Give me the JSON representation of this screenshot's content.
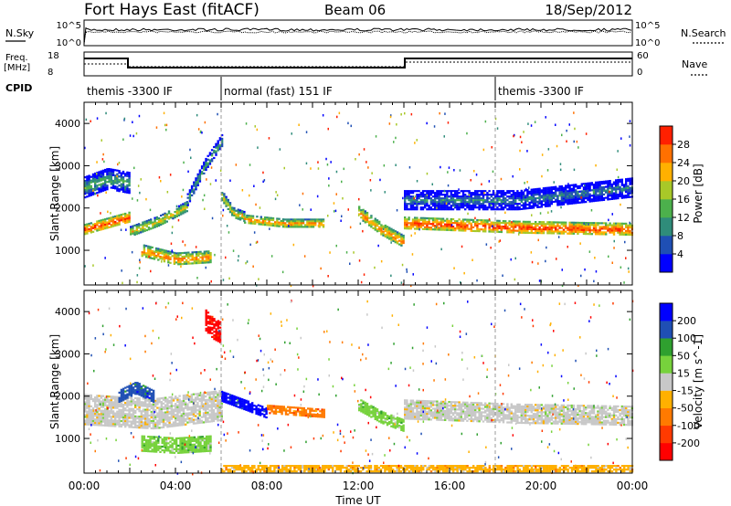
{
  "header": {
    "station": "Fort Hays East (fitACF)",
    "beam": "Beam 06",
    "date": "18/Sep/2012"
  },
  "top_panels": {
    "nsky_label": "N.Sky",
    "nsky_ticks": [
      "10^5",
      "10^0"
    ],
    "nsearch_label": "N.Search",
    "nsearch_ticks": [
      "10^5",
      "10^0"
    ],
    "freq_label_1": "Freq.",
    "freq_label_2": "[MHz]",
    "freq_ticks": [
      "18",
      "8"
    ],
    "nave_label": "Nave",
    "nave_ticks": [
      "60",
      "0"
    ],
    "cpid_label": "CPID",
    "cpid_segments": [
      {
        "label": "themis -3300 IF",
        "start_h": 0,
        "end_h": 6
      },
      {
        "label": "normal (fast) 151 IF",
        "start_h": 6,
        "end_h": 18
      },
      {
        "label": "themis -3300 IF",
        "start_h": 18,
        "end_h": 24
      }
    ]
  },
  "chart_data": [
    {
      "type": "heatmap",
      "name": "power",
      "ylabel": "Slant Range [km]",
      "xlim_hours": [
        0,
        24
      ],
      "ylim_km": [
        180,
        4500
      ],
      "y_ticks": [
        "1000",
        "2000",
        "3000",
        "4000"
      ],
      "colorbar_label": "Power [dB]",
      "colorbar_ticks": [
        "4",
        "8",
        "12",
        "16",
        "20",
        "24",
        "28"
      ],
      "colorbar_colors": [
        "#0000ff",
        "#1f4fb4",
        "#2f8c7a",
        "#4cb04c",
        "#a8c828",
        "#ffb000",
        "#ff7000",
        "#ff2000"
      ],
      "bands": [
        {
          "start_h": 0.0,
          "end_h": 2.0,
          "center_km": [
            1500,
            1650,
            1800
          ],
          "width_km": 250,
          "level": 7
        },
        {
          "start_h": 0.0,
          "end_h": 2.0,
          "center_km": [
            2500,
            2700,
            2600
          ],
          "width_km": 500,
          "level": 3
        },
        {
          "start_h": 2.0,
          "end_h": 4.5,
          "center_km": [
            1450,
            1700,
            2050
          ],
          "width_km": 250,
          "level": 5
        },
        {
          "start_h": 2.5,
          "end_h": 5.5,
          "center_km": [
            1000,
            800,
            850
          ],
          "width_km": 300,
          "level": 6
        },
        {
          "start_h": 4.5,
          "end_h": 6.0,
          "center_km": [
            2200,
            3000,
            3600
          ],
          "width_km": 300,
          "level": 3
        },
        {
          "start_h": 6.0,
          "end_h": 7.0,
          "center_km": [
            2300,
            1900,
            1800
          ],
          "width_km": 250,
          "level": 5
        },
        {
          "start_h": 7.0,
          "end_h": 10.5,
          "center_km": [
            1750,
            1650,
            1650
          ],
          "width_km": 200,
          "level": 6
        },
        {
          "start_h": 12.0,
          "end_h": 14.0,
          "center_km": [
            1900,
            1500,
            1200
          ],
          "width_km": 300,
          "level": 6
        },
        {
          "start_h": 14.0,
          "end_h": 24.0,
          "center_km": [
            1650,
            1550,
            1500
          ],
          "width_km": 300,
          "level": 7
        },
        {
          "start_h": 14.0,
          "end_h": 24.0,
          "center_km": [
            2200,
            2200,
            2500
          ],
          "width_km": 450,
          "level": 2
        }
      ]
    },
    {
      "type": "heatmap",
      "name": "velocity",
      "ylabel": "Slant Range [km]",
      "xlabel": "Time UT",
      "xlim_hours": [
        0,
        24
      ],
      "ylim_km": [
        180,
        4500
      ],
      "x_ticks": [
        "00:00",
        "04:00",
        "08:00",
        "12:00",
        "16:00",
        "20:00",
        "00:00"
      ],
      "y_ticks": [
        "1000",
        "2000",
        "3000",
        "4000"
      ],
      "colorbar_label": "Velocity [m s^-1]",
      "colorbar_ticks": [
        "200",
        "100",
        "50",
        "15",
        "-15",
        "-50",
        "-100",
        "-200"
      ],
      "colorbar_colors": [
        "#0000ff",
        "#1f4fb4",
        "#2fa02f",
        "#77d23c",
        "#c8c8c8",
        "#ffb000",
        "#ff7a00",
        "#ff3a00",
        "#ff0000"
      ],
      "bands": [
        {
          "start_h": 0.0,
          "end_h": 6.0,
          "center_km": [
            1700,
            1600,
            1800
          ],
          "width_km": 700,
          "level": 4
        },
        {
          "start_h": 1.5,
          "end_h": 3.0,
          "center_km": [
            2000,
            2200,
            2000
          ],
          "width_km": 300,
          "level": 1
        },
        {
          "start_h": 2.5,
          "end_h": 5.5,
          "center_km": [
            900,
            850,
            900
          ],
          "width_km": 350,
          "level": 3
        },
        {
          "start_h": 5.3,
          "end_h": 6.0,
          "center_km": [
            3800,
            3600,
            3500
          ],
          "width_km": 500,
          "level": 8
        },
        {
          "start_h": 6.0,
          "end_h": 8.0,
          "center_km": [
            2000,
            1800,
            1600
          ],
          "width_km": 250,
          "level": 0
        },
        {
          "start_h": 8.0,
          "end_h": 10.5,
          "center_km": [
            1700,
            1650,
            1600
          ],
          "width_km": 200,
          "level": 6
        },
        {
          "start_h": 12.0,
          "end_h": 14.0,
          "center_km": [
            1800,
            1500,
            1300
          ],
          "width_km": 300,
          "level": 3
        },
        {
          "start_h": 14.0,
          "end_h": 24.0,
          "center_km": [
            1700,
            1600,
            1550
          ],
          "width_km": 450,
          "level": 4
        },
        {
          "start_h": 6.0,
          "end_h": 24.0,
          "center_km": [
            300,
            300,
            300
          ],
          "width_km": 150,
          "level": 5
        }
      ]
    }
  ]
}
